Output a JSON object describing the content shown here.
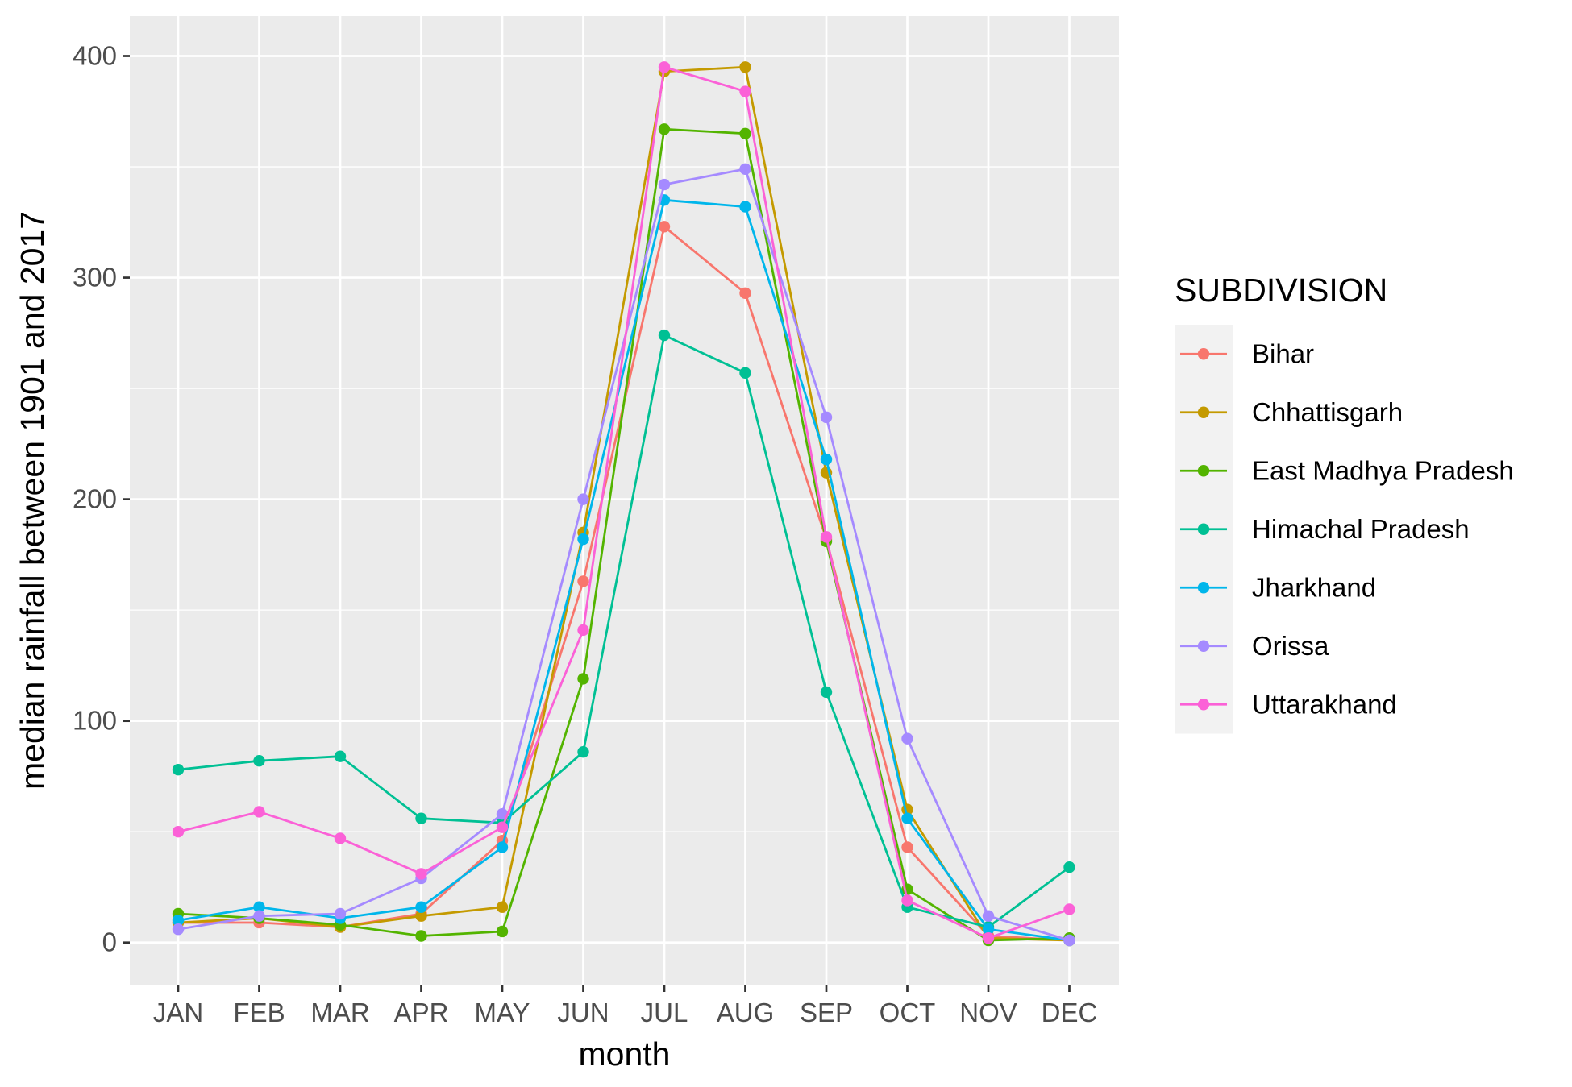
{
  "chart_data": {
    "type": "line",
    "xlabel": "month",
    "ylabel": "median rainfall between 1901 and 2017",
    "categories": [
      "JAN",
      "FEB",
      "MAR",
      "APR",
      "MAY",
      "JUN",
      "JUL",
      "AUG",
      "SEP",
      "OCT",
      "NOV",
      "DEC"
    ],
    "ylim": [
      -19,
      418
    ],
    "yticks": [
      0,
      100,
      200,
      300,
      400
    ],
    "grid": true,
    "legend_title": "SUBDIVISION",
    "legend_position": "right",
    "series": [
      {
        "name": "Bihar",
        "color": "#F8766D",
        "values": [
          9,
          9,
          7,
          13,
          46,
          163,
          323,
          293,
          182,
          43,
          3,
          1
        ]
      },
      {
        "name": "Chhattisgarh",
        "color": "#C49A00",
        "values": [
          9,
          11,
          7,
          12,
          16,
          185,
          393,
          395,
          212,
          60,
          2,
          1
        ]
      },
      {
        "name": "East Madhya Pradesh",
        "color": "#53B400",
        "values": [
          13,
          11,
          8,
          3,
          5,
          119,
          367,
          365,
          181,
          24,
          1,
          2
        ]
      },
      {
        "name": "Himachal Pradesh",
        "color": "#00C094",
        "values": [
          78,
          82,
          84,
          56,
          54,
          86,
          274,
          257,
          113,
          16,
          7,
          34
        ]
      },
      {
        "name": "Jharkhand",
        "color": "#00B6EB",
        "values": [
          10,
          16,
          11,
          16,
          43,
          182,
          335,
          332,
          218,
          56,
          6,
          1
        ]
      },
      {
        "name": "Orissa",
        "color": "#A58AFF",
        "values": [
          6,
          12,
          13,
          29,
          58,
          200,
          342,
          349,
          237,
          92,
          12,
          1
        ]
      },
      {
        "name": "Uttarakhand",
        "color": "#FB61D7",
        "values": [
          50,
          59,
          47,
          31,
          52,
          141,
          395,
          384,
          183,
          19,
          2,
          15
        ]
      }
    ]
  }
}
